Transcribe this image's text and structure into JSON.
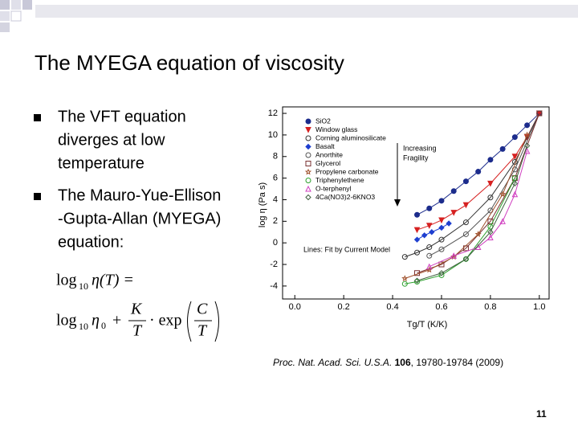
{
  "slide": {
    "title": "The MYEGA equation of viscosity",
    "bullets": [
      [
        "The VFT equation",
        "diverges at low",
        "temperature"
      ],
      [
        "The Mauro-Yue-Ellison",
        "-Gupta-Allan (MYEGA)",
        "equation:"
      ]
    ],
    "equation": {
      "lhs": {
        "log": "log",
        "base": "10",
        "rest": "η(T) ="
      },
      "rhs": {
        "log": "log",
        "base": "10",
        "eta": "η",
        "sub": "0",
        "plus": "+",
        "k_num": "K",
        "k_den": "T",
        "exp": "· exp",
        "c_num": "C",
        "c_den": "T"
      }
    },
    "citation": {
      "journal": "Proc. Nat. Acad. Sci. U.S.A.",
      "volume": "106",
      "pages": ", 19780-19784 (2009)"
    },
    "page_number": "11"
  },
  "chart_data": {
    "type": "scatter",
    "x_label": "Tg/T (K/K)",
    "y_label": "log η (Pa s)",
    "annotations": {
      "arrow_label": [
        "Increasing",
        "Fragility"
      ],
      "fit_note": "Lines: Fit by Current Model"
    },
    "xlim": [
      -0.05,
      1.04
    ],
    "ylim": [
      -5.2,
      12.6
    ],
    "xticks": [
      {
        "value": 0,
        "label": "0.0"
      },
      {
        "value": 0.2,
        "label": "0.2"
      },
      {
        "value": 0.4,
        "label": "0.4"
      },
      {
        "value": 0.6,
        "label": "0.6"
      },
      {
        "value": 0.8,
        "label": "0.8"
      },
      {
        "value": 1,
        "label": "1.0"
      }
    ],
    "yticks": [
      -4,
      -2,
      0,
      2,
      4,
      6,
      8,
      10,
      12
    ],
    "series": [
      {
        "name": "SiO2",
        "color": "#1c2c8c",
        "marker": "circle",
        "filled": true,
        "x": [
          0.5,
          0.55,
          0.6,
          0.65,
          0.7,
          0.75,
          0.8,
          0.85,
          0.9,
          0.95,
          1.0
        ],
        "values": [
          2.6,
          3.2,
          3.9,
          4.8,
          5.7,
          6.6,
          7.7,
          8.7,
          9.8,
          10.9,
          12
        ]
      },
      {
        "name": "Window glass",
        "color": "#d62020",
        "marker": "triangle-down",
        "filled": true,
        "x": [
          0.5,
          0.55,
          0.6,
          0.65,
          0.7,
          0.8,
          0.9,
          0.95,
          1.0
        ],
        "values": [
          1.2,
          1.6,
          2.1,
          2.8,
          3.5,
          5.5,
          8,
          9.8,
          12
        ]
      },
      {
        "name": "Corning aluminosilicate",
        "color": "#333333",
        "marker": "circle",
        "filled": false,
        "x": [
          0.45,
          0.5,
          0.55,
          0.6,
          0.7,
          0.8,
          0.9,
          1.0
        ],
        "values": [
          -1.3,
          -0.9,
          -0.4,
          0.3,
          1.9,
          4.2,
          7.5,
          12
        ]
      },
      {
        "name": "Basalt",
        "color": "#1e3fd0",
        "marker": "diamond",
        "filled": true,
        "x": [
          0.5,
          0.53,
          0.56,
          0.6,
          0.63
        ],
        "values": [
          0.3,
          0.7,
          1.0,
          1.4,
          1.8
        ]
      },
      {
        "name": "Anorthite",
        "color": "#555555",
        "marker": "circle",
        "filled": false,
        "x": [
          0.55,
          0.6,
          0.7,
          0.8,
          0.9,
          1.0
        ],
        "values": [
          -1.2,
          -0.6,
          0.8,
          3,
          6.8,
          12
        ]
      },
      {
        "name": "Glycerol",
        "color": "#7a3030",
        "marker": "square",
        "filled": false,
        "x": [
          0.5,
          0.6,
          0.7,
          0.8,
          0.9,
          1.0
        ],
        "values": [
          -2.8,
          -2,
          -0.5,
          2,
          6,
          12
        ]
      },
      {
        "name": "Propylene carbonate",
        "color": "#a0522d",
        "marker": "star",
        "filled": false,
        "x": [
          0.45,
          0.55,
          0.65,
          0.75,
          0.85,
          0.95
        ],
        "values": [
          -3.3,
          -2.5,
          -1.3,
          0.8,
          4.5,
          10
        ]
      },
      {
        "name": "Triphenylethene",
        "color": "#2ca02c",
        "marker": "circle",
        "filled": false,
        "x": [
          0.45,
          0.5,
          0.6,
          0.7,
          0.8,
          0.9
        ],
        "values": [
          -3.8,
          -3.6,
          -3,
          -1.5,
          1.5,
          6
        ]
      },
      {
        "name": "O-terphenyl",
        "color": "#d040c0",
        "marker": "triangle-up",
        "filled": false,
        "x": [
          0.55,
          0.65,
          0.75,
          0.8,
          0.85,
          0.9,
          0.95
        ],
        "values": [
          -2.2,
          -1.2,
          -0.4,
          0.5,
          2,
          4.5,
          8.5
        ]
      },
      {
        "name": "4Ca(NO3)2-6KNO3",
        "color": "#406040",
        "marker": "diamond",
        "filled": false,
        "x": [
          0.5,
          0.6,
          0.7,
          0.8,
          0.9,
          0.95
        ],
        "values": [
          -3.5,
          -2.8,
          -1.5,
          1,
          5.5,
          9
        ]
      }
    ]
  }
}
